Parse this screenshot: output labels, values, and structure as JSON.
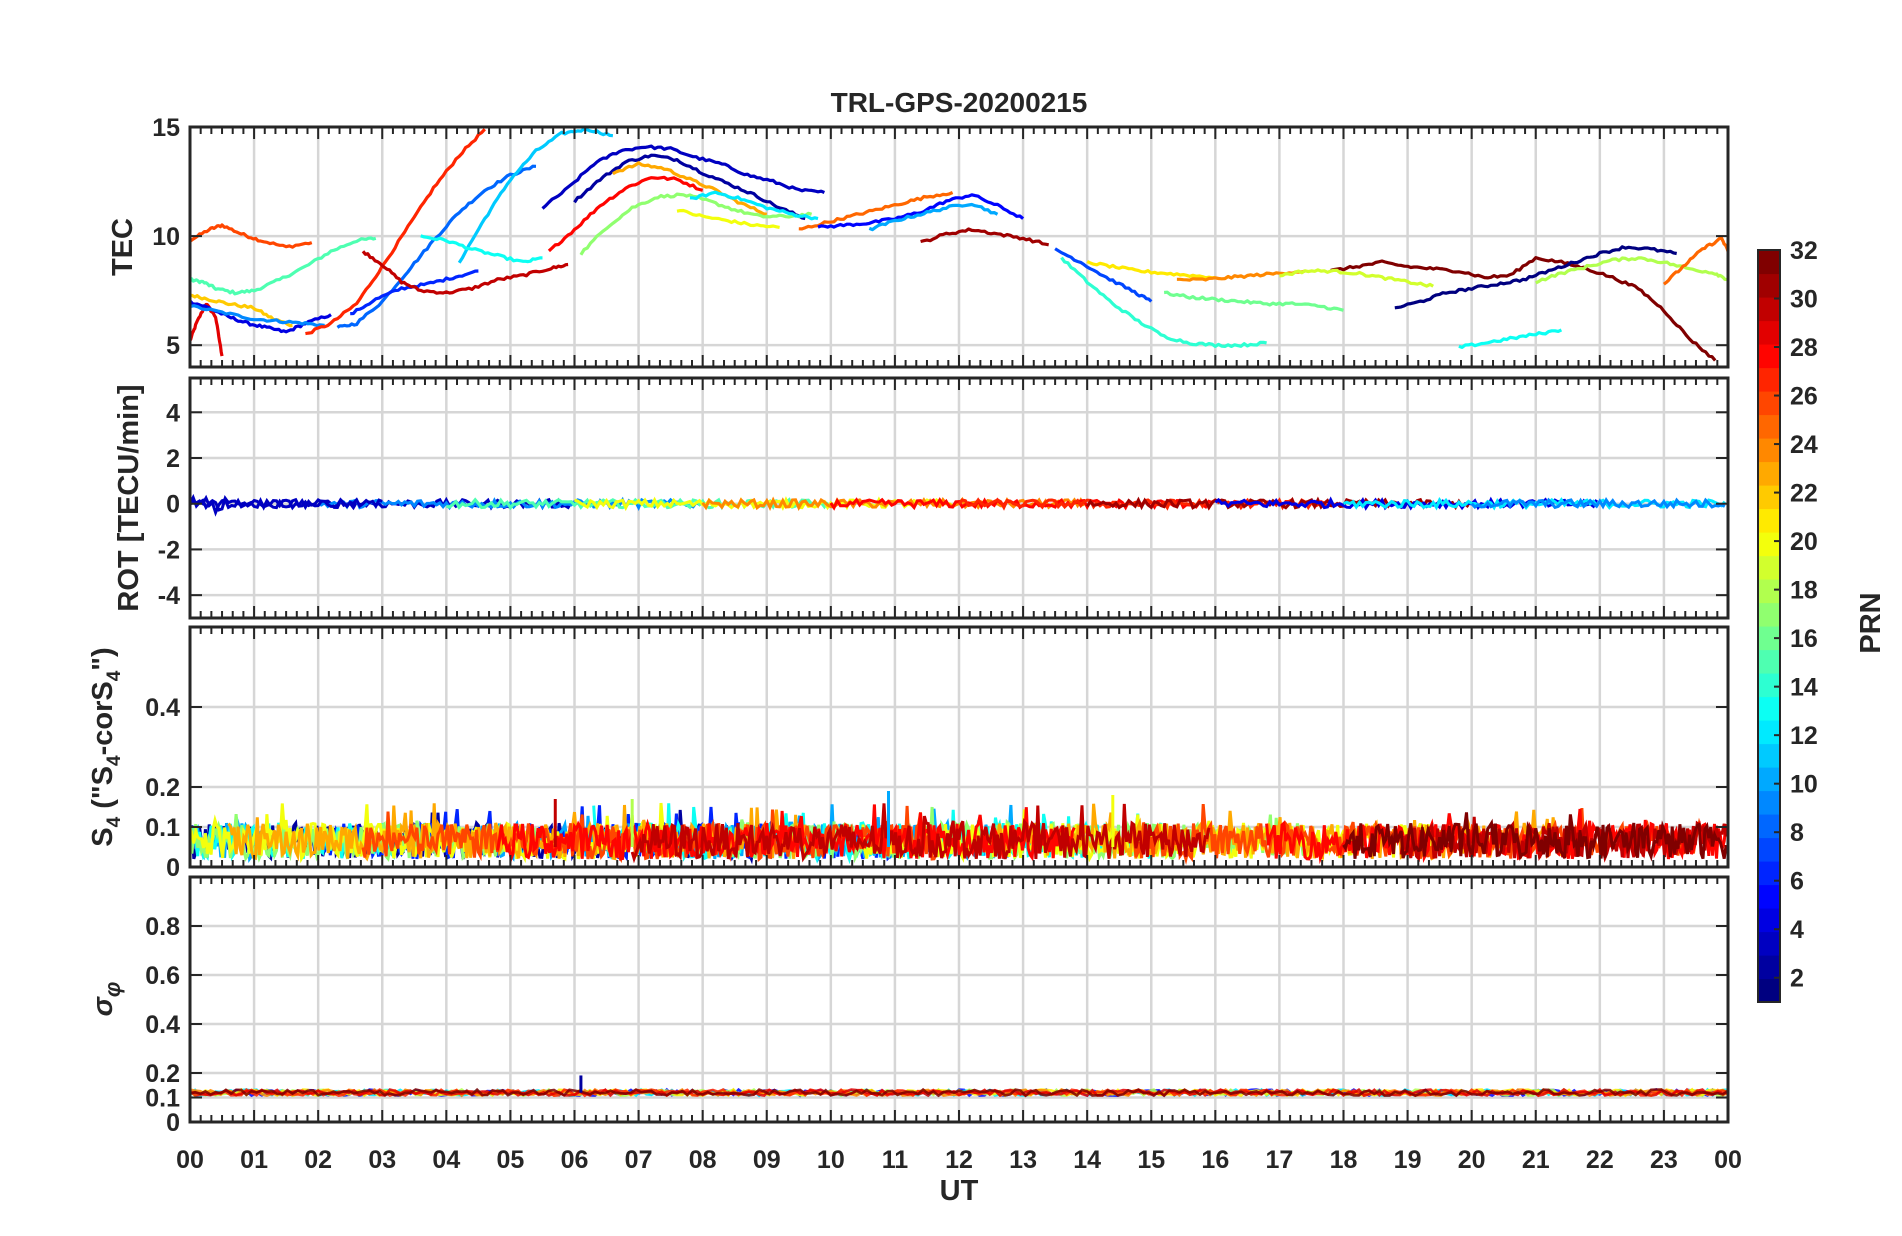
{
  "chart_data": {
    "type": "line",
    "title": "TRL-GPS-20200215",
    "xlabel": "UT",
    "xticks": [
      "00",
      "01",
      "02",
      "03",
      "04",
      "05",
      "06",
      "07",
      "08",
      "09",
      "10",
      "11",
      "12",
      "13",
      "14",
      "15",
      "16",
      "17",
      "18",
      "19",
      "20",
      "21",
      "22",
      "23",
      "00"
    ],
    "xlim_hours": [
      0,
      24
    ],
    "colorbar": {
      "label": "PRN",
      "range": [
        1,
        32
      ],
      "ticks": [
        "2",
        "4",
        "6",
        "8",
        "10",
        "12",
        "14",
        "16",
        "18",
        "20",
        "22",
        "24",
        "26",
        "28",
        "30",
        "32"
      ],
      "colormap": "jet"
    },
    "panels": [
      {
        "id": "tec",
        "ylabel": "TEC",
        "ylim": [
          4,
          15
        ],
        "yticks": [
          "5",
          "10",
          "15"
        ],
        "series": [
          {
            "name": "PRN 29",
            "prn": 29,
            "x": [
              0,
              0.1,
              0.25,
              0.4,
              0.5
            ],
            "y": [
              5.2,
              6.0,
              6.9,
              6.3,
              4.5
            ]
          },
          {
            "name": "PRN 26",
            "prn": 26,
            "x": [
              0,
              0.3,
              0.5,
              0.8,
              1.1,
              1.5,
              1.9
            ],
            "y": [
              9.8,
              10.3,
              10.5,
              10.1,
              9.8,
              9.5,
              9.7
            ]
          },
          {
            "name": "PRN 15",
            "prn": 15,
            "x": [
              0,
              0.2,
              0.4,
              0.7,
              1.0,
              1.4,
              1.8,
              2.2,
              2.6,
              2.9
            ],
            "y": [
              8.0,
              7.9,
              7.6,
              7.4,
              7.5,
              8.0,
              8.6,
              9.3,
              9.8,
              9.9
            ]
          },
          {
            "name": "PRN 22",
            "prn": 22,
            "x": [
              0,
              0.3,
              0.6,
              1.0,
              1.3,
              1.6
            ],
            "y": [
              7.3,
              7.1,
              6.9,
              6.7,
              6.2,
              5.9
            ]
          },
          {
            "name": "PRN 4",
            "prn": 4,
            "x": [
              0,
              0.3,
              0.6,
              0.9,
              1.2,
              1.5,
              1.8,
              2.2
            ],
            "y": [
              7.0,
              6.7,
              6.3,
              6.0,
              5.8,
              5.6,
              6.0,
              6.4
            ]
          },
          {
            "name": "PRN 9",
            "prn": 9,
            "x": [
              0,
              0.5,
              1.0,
              1.4,
              1.8,
              2.1
            ],
            "y": [
              6.8,
              6.5,
              6.2,
              6.1,
              6.0,
              5.9
            ]
          },
          {
            "name": "PRN 27",
            "prn": 27,
            "x": [
              1.8,
              2.2,
              2.6,
              3.0,
              3.4,
              3.8,
              4.2,
              4.6
            ],
            "y": [
              5.5,
              6.0,
              6.9,
              8.6,
              10.4,
              12.2,
              13.7,
              14.9
            ]
          },
          {
            "name": "PRN 8",
            "prn": 8,
            "x": [
              2.3,
              2.6,
              3.0,
              3.4,
              3.8,
              4.2,
              4.6,
              5.0,
              5.4
            ],
            "y": [
              5.8,
              6.0,
              7.0,
              8.4,
              9.8,
              11.1,
              12.1,
              12.8,
              13.2
            ]
          },
          {
            "name": "PRN 11",
            "prn": 11,
            "x": [
              4.2,
              4.6,
              5.0,
              5.4,
              5.8,
              6.2,
              6.6
            ],
            "y": [
              8.8,
              10.8,
              12.6,
              13.9,
              14.7,
              14.9,
              14.6
            ]
          },
          {
            "name": "PRN 6",
            "prn": 6,
            "x": [
              2.5,
              2.9,
              3.3,
              3.7,
              4.1,
              4.5
            ],
            "y": [
              6.4,
              7.1,
              7.6,
              7.8,
              8.1,
              8.4
            ]
          },
          {
            "name": "PRN 30",
            "prn": 30,
            "x": [
              2.7,
              3.0,
              3.3,
              3.6,
              4.0,
              4.4,
              4.8,
              5.2,
              5.6,
              5.9
            ],
            "y": [
              9.3,
              8.7,
              7.9,
              7.5,
              7.4,
              7.6,
              8.0,
              8.2,
              8.5,
              8.7
            ]
          },
          {
            "name": "PRN 13",
            "prn": 13,
            "x": [
              3.6,
              4.0,
              4.4,
              4.8,
              5.2,
              5.5
            ],
            "y": [
              10.0,
              9.8,
              9.4,
              9.1,
              8.8,
              9.0
            ]
          },
          {
            "name": "PRN 3",
            "prn": 3,
            "x": [
              5.5,
              5.9,
              6.3,
              6.7,
              7.1,
              7.5,
              7.9,
              8.3,
              8.7,
              9.1,
              9.5,
              9.9
            ],
            "y": [
              11.3,
              12.2,
              13.3,
              13.9,
              14.1,
              14.0,
              13.6,
              13.3,
              12.8,
              12.5,
              12.1,
              12.0
            ]
          },
          {
            "name": "PRN 28",
            "prn": 28,
            "x": [
              5.6,
              6.0,
              6.4,
              6.8,
              7.2,
              7.6,
              8.0
            ],
            "y": [
              9.3,
              10.3,
              11.4,
              12.2,
              12.7,
              12.6,
              12.1
            ]
          },
          {
            "name": "PRN 2",
            "prn": 2,
            "x": [
              6.0,
              6.4,
              6.8,
              7.2,
              7.6,
              8.0,
              8.4,
              8.8,
              9.2,
              9.6
            ],
            "y": [
              11.6,
              12.6,
              13.4,
              13.7,
              13.5,
              12.9,
              12.4,
              11.9,
              11.3,
              10.8
            ]
          },
          {
            "name": "PRN 23",
            "prn": 23,
            "x": [
              6.6,
              7.0,
              7.4,
              7.8,
              8.2,
              8.6,
              9.0
            ],
            "y": [
              12.9,
              13.3,
              13.1,
              12.6,
              12.1,
              11.5,
              11.0
            ]
          },
          {
            "name": "PRN 17",
            "prn": 17,
            "x": [
              6.1,
              6.5,
              6.9,
              7.3,
              7.7,
              8.1,
              8.5,
              8.9,
              9.3,
              9.7
            ],
            "y": [
              9.2,
              10.4,
              11.3,
              11.8,
              11.9,
              11.6,
              11.2,
              10.9,
              10.9,
              11.0
            ]
          },
          {
            "name": "PRN 12",
            "prn": 12,
            "x": [
              7.8,
              8.2,
              8.6,
              9.0,
              9.4,
              9.8
            ],
            "y": [
              11.7,
              12.0,
              11.7,
              11.3,
              11.0,
              10.8
            ]
          },
          {
            "name": "PRN 20",
            "prn": 20,
            "x": [
              7.6,
              8.0,
              8.4,
              8.8,
              9.2
            ],
            "y": [
              11.2,
              10.9,
              10.7,
              10.5,
              10.4
            ]
          },
          {
            "name": "PRN 25",
            "prn": 25,
            "x": [
              9.5,
              9.9,
              10.3,
              10.7,
              11.1,
              11.5,
              11.9
            ],
            "y": [
              10.3,
              10.6,
              10.9,
              11.2,
              11.5,
              11.8,
              12.0
            ]
          },
          {
            "name": "PRN 5",
            "prn": 5,
            "x": [
              9.8,
              10.2,
              10.6,
              11.0,
              11.4,
              11.8,
              12.2,
              12.6,
              13.0
            ],
            "y": [
              10.4,
              10.5,
              10.6,
              10.8,
              11.1,
              11.6,
              11.9,
              11.4,
              10.8
            ]
          },
          {
            "name": "PRN 10",
            "prn": 10,
            "x": [
              10.6,
              11.0,
              11.4,
              11.8,
              12.2,
              12.6
            ],
            "y": [
              10.3,
              10.7,
              11.0,
              11.3,
              11.5,
              11.0
            ]
          },
          {
            "name": "PRN 31",
            "prn": 31,
            "x": [
              11.4,
              11.8,
              12.2,
              12.6,
              13.0,
              13.4
            ],
            "y": [
              9.7,
              10.1,
              10.3,
              10.1,
              9.9,
              9.6
            ]
          },
          {
            "name": "PRN 14",
            "prn": 14,
            "x": [
              13.6,
              14.0,
              14.4,
              14.8,
              15.2,
              15.6,
              16.0,
              16.4,
              16.8
            ],
            "y": [
              9.0,
              7.9,
              6.9,
              6.1,
              5.4,
              5.1,
              5.0,
              5.0,
              5.1
            ]
          },
          {
            "name": "PRN 7",
            "prn": 7,
            "x": [
              13.5,
              13.9,
              14.3,
              14.7,
              15.0
            ],
            "y": [
              9.4,
              8.8,
              8.1,
              7.5,
              7.0
            ]
          },
          {
            "name": "PRN 21",
            "prn": 21,
            "x": [
              14.0,
              14.4,
              14.8,
              15.2,
              15.6,
              16.0
            ],
            "y": [
              8.8,
              8.6,
              8.4,
              8.3,
              8.2,
              8.1
            ]
          },
          {
            "name": "PRN 16",
            "prn": 16,
            "x": [
              15.2,
              15.6,
              16.0,
              16.4,
              16.8,
              17.2,
              17.6,
              18.0
            ],
            "y": [
              7.4,
              7.2,
              7.1,
              7.0,
              6.9,
              6.9,
              6.8,
              6.6
            ]
          },
          {
            "name": "PRN 24",
            "prn": 24,
            "x": [
              15.4,
              15.8,
              16.2,
              16.6,
              17.0,
              17.4
            ],
            "y": [
              8.0,
              8.0,
              8.1,
              8.2,
              8.3,
              8.4
            ]
          },
          {
            "name": "PRN 32",
            "prn": 32,
            "x": [
              17.8,
              18.2,
              18.6,
              19.0,
              19.4,
              19.8,
              20.2,
              20.6,
              21.0,
              21.4,
              21.8,
              22.2,
              22.6,
              23.0,
              23.4,
              23.8
            ],
            "y": [
              8.4,
              8.6,
              8.8,
              8.6,
              8.5,
              8.4,
              8.1,
              8.2,
              9.0,
              8.8,
              8.5,
              8.1,
              7.6,
              6.6,
              5.3,
              4.3
            ]
          },
          {
            "name": "PRN 19",
            "prn": 19,
            "x": [
              17.0,
              17.4,
              17.8,
              18.2,
              18.6,
              19.0,
              19.4
            ],
            "y": [
              8.2,
              8.4,
              8.4,
              8.3,
              8.1,
              7.9,
              7.7
            ]
          },
          {
            "name": "PRN 1",
            "prn": 1,
            "x": [
              18.8,
              19.2,
              19.6,
              20.0,
              20.4,
              20.8,
              21.2,
              21.6,
              22.0,
              22.4,
              22.8,
              23.2
            ],
            "y": [
              6.7,
              7.0,
              7.4,
              7.6,
              7.8,
              8.0,
              8.4,
              8.8,
              9.2,
              9.5,
              9.4,
              9.2
            ]
          },
          {
            "name": "PRN 13b",
            "prn": 13,
            "x": [
              19.8,
              20.2,
              20.6,
              21.0,
              21.4
            ],
            "y": [
              4.9,
              5.1,
              5.3,
              5.5,
              5.7
            ]
          },
          {
            "name": "PRN 18",
            "prn": 18,
            "x": [
              21.0,
              21.4,
              21.8,
              22.2,
              22.6,
              23.0,
              23.4,
              23.8,
              24.0
            ],
            "y": [
              7.9,
              8.3,
              8.6,
              8.9,
              9.0,
              8.8,
              8.5,
              8.3,
              8.0
            ]
          },
          {
            "name": "PRN 25b",
            "prn": 25,
            "x": [
              23.0,
              23.3,
              23.6,
              23.9,
              24.0
            ],
            "y": [
              7.8,
              8.6,
              9.4,
              9.9,
              9.3
            ]
          }
        ]
      },
      {
        "id": "rot",
        "ylabel": "ROT [TECU/min]",
        "ylim": [
          -5,
          5.5
        ],
        "yticks": [
          "-4",
          "-2",
          "0",
          "2",
          "4"
        ],
        "description_series": "all PRNs fluctuate within about ±0.4 TECU/min around 0 across the day"
      },
      {
        "id": "s4",
        "ylabel": "S4 (\"S4-corS4\")",
        "ylabel_parts": {
          "base": "S",
          "sub": "4",
          "open": " (\"S",
          "sub2": "4",
          "mid": "-corS",
          "sub3": "4",
          "close": "\")"
        },
        "ylim": [
          0,
          0.6
        ],
        "yticks": [
          "0",
          "0.1",
          "0.2",
          "0.4"
        ],
        "typical_range": [
          0.0,
          0.15
        ],
        "peaks": [
          {
            "x": 10.9,
            "y": 0.19
          },
          {
            "x": 14.4,
            "y": 0.18
          },
          {
            "x": 5.7,
            "y": 0.17
          },
          {
            "x": 6.9,
            "y": 0.17
          }
        ]
      },
      {
        "id": "sigma_phi",
        "ylabel": "σ_φ",
        "ylabel_parts": {
          "base": "σ",
          "sub": "φ"
        },
        "ylim": [
          0,
          1
        ],
        "yticks": [
          "0",
          "0.1",
          "0.2",
          "0.4",
          "0.6",
          "0.8"
        ],
        "typical_value": 0.12,
        "peaks": [
          {
            "x": 6.1,
            "y": 0.19
          }
        ]
      }
    ]
  }
}
